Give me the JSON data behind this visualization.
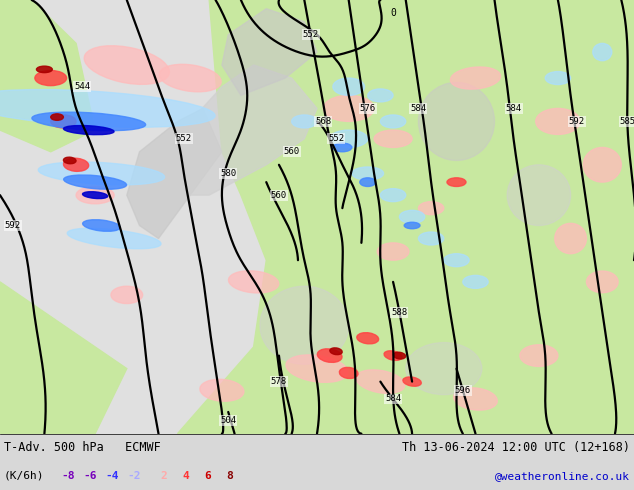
{
  "title_left": "T-Adv. 500 hPa   ECMWF",
  "title_right": "Th 13-06-2024 12:00 UTC (12+168)",
  "legend_label": "(K/6h)",
  "neg_vals": [
    "-8",
    "-6",
    "-4",
    "-2"
  ],
  "pos_vals": [
    "2",
    "4",
    "6",
    "8"
  ],
  "neg_cols": [
    "#7700bb",
    "#7700bb",
    "#3333ff",
    "#aaaaff"
  ],
  "pos_cols": [
    "#ffaaaa",
    "#ff3333",
    "#cc0000",
    "#880000"
  ],
  "watermark": "@weatheronline.co.uk",
  "watermark_color": "#0000cc",
  "bottom_bar_color": "#d8d8d8",
  "figsize": [
    6.34,
    4.9
  ],
  "dpi": 100
}
